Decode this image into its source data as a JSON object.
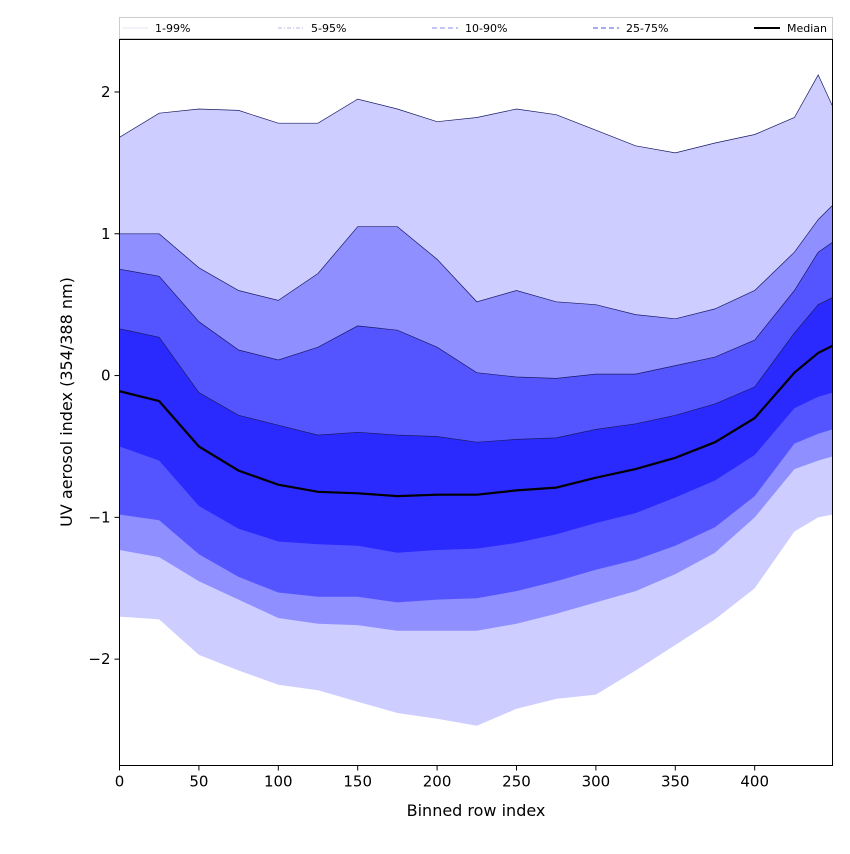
{
  "chart_data": {
    "type": "area",
    "xlabel": "Binned row index",
    "ylabel": "UV aerosol index (354/388 nm)",
    "xlim": [
      0,
      449
    ],
    "ylim": [
      -2.75,
      2.37
    ],
    "xticks": [
      0,
      50,
      100,
      150,
      200,
      250,
      300,
      350,
      400
    ],
    "yticks": [
      -2,
      -1,
      0,
      1,
      2
    ],
    "ytick_labels": [
      "−2",
      "−1",
      "0",
      "1",
      "2"
    ],
    "grid": false,
    "legend": {
      "placement": "top",
      "entries": [
        {
          "label": "1-99%",
          "color": "#e6e6f5",
          "style": "solid"
        },
        {
          "label": "5-95%",
          "color": "#b7b7e6",
          "style": "dashdot"
        },
        {
          "label": "10-90%",
          "color": "#8a8af0",
          "style": "dashed"
        },
        {
          "label": "25-75%",
          "color": "#5555dd",
          "style": "dashed"
        },
        {
          "label": "Median",
          "color": "#000000",
          "style": "solid"
        }
      ]
    },
    "x": [
      0,
      25,
      50,
      75,
      100,
      125,
      150,
      175,
      200,
      225,
      250,
      275,
      300,
      325,
      350,
      375,
      400,
      425,
      440,
      449
    ],
    "series": [
      {
        "name": "1-99%",
        "color": "#cdcdff",
        "lower": [
          -1.7,
          -1.72,
          -1.97,
          -2.08,
          -2.18,
          -2.22,
          -2.3,
          -2.38,
          -2.42,
          -2.47,
          -2.35,
          -2.28,
          -2.25,
          -2.08,
          -1.9,
          -1.72,
          -1.5,
          -1.1,
          -1.0,
          -0.98
        ],
        "upper": [
          1.68,
          1.85,
          1.88,
          1.87,
          1.78,
          1.78,
          1.95,
          1.88,
          1.79,
          1.82,
          1.88,
          1.84,
          1.73,
          1.62,
          1.57,
          1.64,
          1.7,
          1.82,
          2.12,
          1.9
        ]
      },
      {
        "name": "5-95%",
        "color": "#8f8fff",
        "lower": [
          -1.23,
          -1.28,
          -1.45,
          -1.58,
          -1.71,
          -1.75,
          -1.76,
          -1.8,
          -1.8,
          -1.8,
          -1.75,
          -1.68,
          -1.6,
          -1.52,
          -1.4,
          -1.25,
          -1.0,
          -0.66,
          -0.6,
          -0.57
        ],
        "upper": [
          1.0,
          1.0,
          0.76,
          0.6,
          0.53,
          0.72,
          1.05,
          1.05,
          0.82,
          0.52,
          0.6,
          0.52,
          0.5,
          0.43,
          0.4,
          0.47,
          0.6,
          0.87,
          1.1,
          1.2
        ]
      },
      {
        "name": "10-90%",
        "color": "#5555ff",
        "lower": [
          -0.98,
          -1.02,
          -1.26,
          -1.42,
          -1.53,
          -1.56,
          -1.56,
          -1.6,
          -1.58,
          -1.57,
          -1.52,
          -1.45,
          -1.37,
          -1.3,
          -1.2,
          -1.07,
          -0.85,
          -0.48,
          -0.41,
          -0.38
        ],
        "upper": [
          0.75,
          0.7,
          0.38,
          0.18,
          0.11,
          0.2,
          0.35,
          0.32,
          0.2,
          0.02,
          -0.01,
          -0.02,
          0.01,
          0.01,
          0.07,
          0.13,
          0.25,
          0.6,
          0.87,
          0.94
        ]
      },
      {
        "name": "25-75%",
        "color": "#2a2aff",
        "lower": [
          -0.5,
          -0.6,
          -0.92,
          -1.08,
          -1.17,
          -1.19,
          -1.2,
          -1.25,
          -1.23,
          -1.22,
          -1.18,
          -1.12,
          -1.04,
          -0.97,
          -0.86,
          -0.74,
          -0.56,
          -0.23,
          -0.15,
          -0.12
        ],
        "upper": [
          0.33,
          0.27,
          -0.12,
          -0.28,
          -0.35,
          -0.42,
          -0.4,
          -0.42,
          -0.43,
          -0.47,
          -0.45,
          -0.44,
          -0.38,
          -0.34,
          -0.28,
          -0.2,
          -0.08,
          0.3,
          0.5,
          0.55
        ]
      }
    ],
    "median": {
      "name": "Median",
      "values": [
        -0.11,
        -0.18,
        -0.5,
        -0.67,
        -0.77,
        -0.82,
        -0.83,
        -0.85,
        -0.84,
        -0.84,
        -0.81,
        -0.79,
        -0.72,
        -0.66,
        -0.58,
        -0.47,
        -0.3,
        0.02,
        0.16,
        0.21
      ]
    }
  }
}
